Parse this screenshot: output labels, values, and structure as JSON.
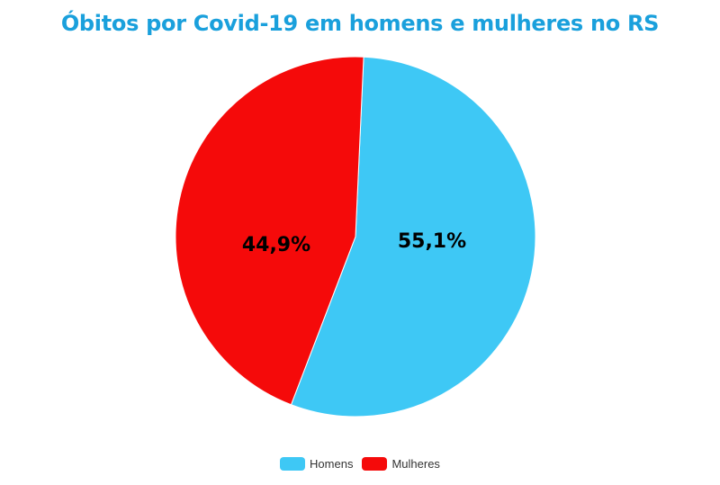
{
  "chart_data": {
    "type": "pie",
    "title": "Óbitos por Covid-19 em homens e mulheres no RS",
    "categories": [
      "Homens",
      "Mulheres"
    ],
    "values": [
      55.1,
      44.9
    ],
    "labels": [
      "55,1%",
      "44,9%"
    ],
    "colors": [
      "#3ec8f5",
      "#f50a0a"
    ],
    "start_angle_deg": 2.6,
    "legend_position": "bottom"
  },
  "title": "Óbitos por Covid-19 em homens e mulheres no RS",
  "legend": [
    {
      "label": "Homens",
      "color": "#3ec8f5"
    },
    {
      "label": "Mulheres",
      "color": "#f50a0a"
    }
  ],
  "slice_labels": {
    "homens": "55,1%",
    "mulheres": "44,9%"
  }
}
